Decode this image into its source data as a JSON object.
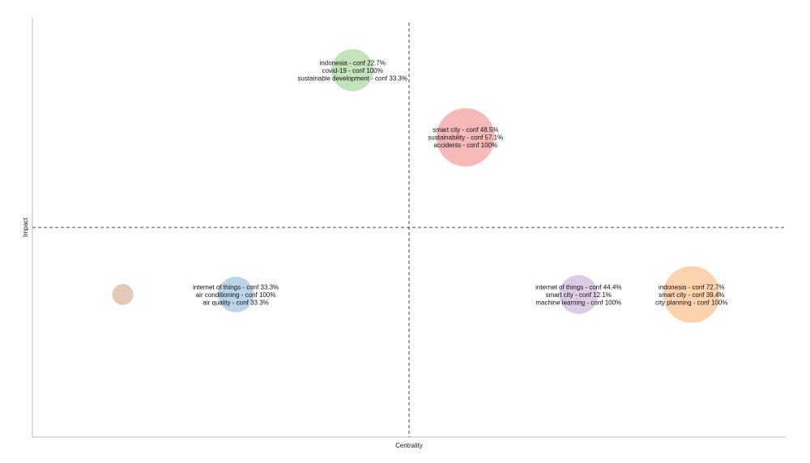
{
  "chart_data": {
    "type": "scatter",
    "xlabel": "Centrality",
    "ylabel": "Impact",
    "xlim": [
      0,
      100
    ],
    "ylim": [
      0,
      100
    ],
    "quadrant_lines": {
      "x": 50,
      "y": 50,
      "style": "dashed"
    },
    "grid": false,
    "series": [
      {
        "x": 42.5,
        "y": 87.5,
        "size": 26,
        "color": "#b5dcaa",
        "labels": [
          "indonesia - conf 22.7%",
          "covid-19 - conf 100%",
          "sustainable development - conf 33.3%"
        ]
      },
      {
        "x": 57.5,
        "y": 71.5,
        "size": 36,
        "color": "#f2a7a7",
        "labels": [
          "smart city - conf 48.5%",
          "sustainability - conf 57.1%",
          "accidents - conf 100%"
        ]
      },
      {
        "x": 12.0,
        "y": 34.0,
        "size": 13,
        "color": "#dcbba5",
        "labels": []
      },
      {
        "x": 27.0,
        "y": 34.0,
        "size": 22,
        "color": "#adc8e2",
        "labels": [
          "internet of things - conf 33.3%",
          "air conditioning - conf 100%",
          "air quality - conf 33.3%"
        ]
      },
      {
        "x": 72.5,
        "y": 34.0,
        "size": 24,
        "color": "#d6bfe0",
        "labels": [
          "internet of things - conf 44.4%",
          "smart city - conf 12.1%",
          "machine learning - conf 100%"
        ]
      },
      {
        "x": 87.5,
        "y": 34.0,
        "size": 35,
        "color": "#fbc89a",
        "labels": [
          "indonesia - conf 72.7%",
          "smart city - conf 39.4%",
          "city planning - conf 100%"
        ]
      }
    ]
  }
}
